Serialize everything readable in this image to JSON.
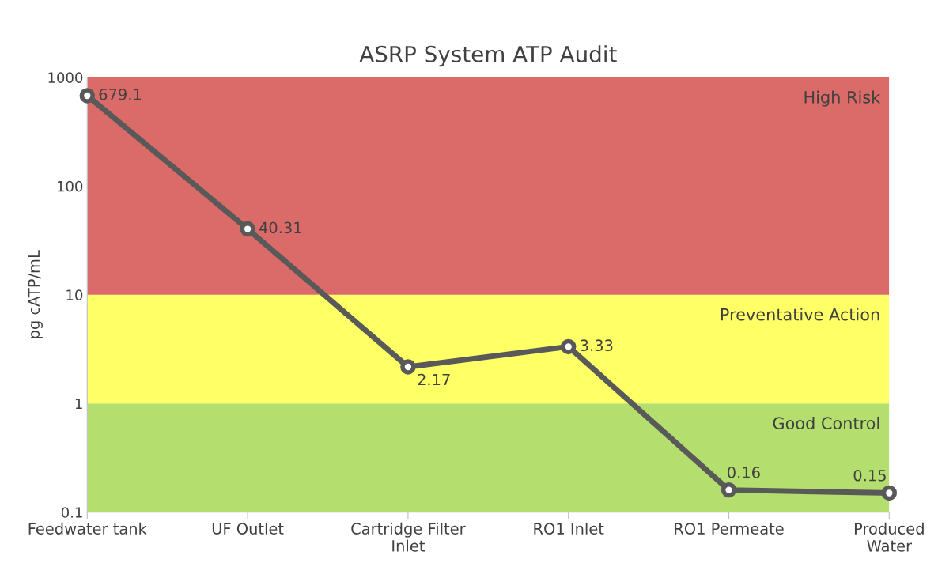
{
  "chart_data": {
    "type": "line",
    "title": "ASRP System ATP Audit",
    "ylabel": "pg cATP/mL",
    "categories": [
      "Feedwater tank",
      "UF Outlet",
      "Cartridge Filter\nInlet",
      "RO1 Inlet",
      "RO1 Permeate",
      "Produced\nWater"
    ],
    "series": [
      {
        "color": "#595959",
        "values": [
          679.1,
          40.31,
          2.17,
          3.33,
          0.16,
          0.15
        ]
      }
    ],
    "log": "y",
    "ylim": [
      0.1,
      1000
    ],
    "yticks": [
      0.1,
      1,
      10,
      100,
      1000
    ],
    "bands": [
      {
        "axis": "y",
        "from": 0.1,
        "to": 1,
        "label": "Good Control",
        "color": "#b4de6e"
      },
      {
        "axis": "y",
        "from": 1,
        "to": 10,
        "label": "Preventative Action",
        "color": "#ffff66"
      },
      {
        "axis": "y",
        "from": 10,
        "to": 1000,
        "label": "High Risk",
        "color": "#da6b68"
      }
    ],
    "data_labels": true,
    "grid": false,
    "legend": false,
    "marker": "circle",
    "line_style": "solid"
  }
}
